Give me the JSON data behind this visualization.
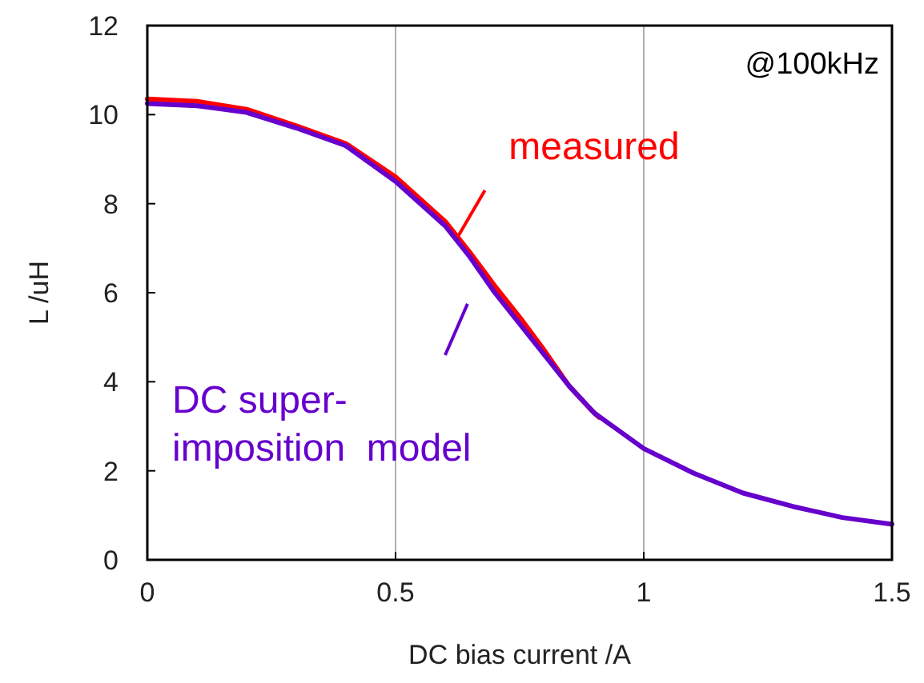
{
  "chart_data": {
    "type": "line",
    "xlabel": "DC bias current /A",
    "ylabel": "L /uH",
    "xlim": [
      0,
      1.5
    ],
    "ylim": [
      0,
      12
    ],
    "xticks": [
      0,
      0.5,
      1,
      1.5
    ],
    "yticks": [
      0,
      2,
      4,
      6,
      8,
      10,
      12
    ],
    "grid": "x",
    "marker": "none",
    "line_style": "solid",
    "annotations": [
      "@100kHz"
    ],
    "series": [
      {
        "name": "measured",
        "color": "#ff0000",
        "x": [
          0,
          0.1,
          0.2,
          0.3,
          0.4,
          0.5,
          0.6,
          0.65,
          0.7,
          0.75,
          0.8,
          0.85,
          0.9,
          0.91
        ],
        "values": [
          10.35,
          10.3,
          10.12,
          9.75,
          9.35,
          8.6,
          7.6,
          6.9,
          6.15,
          5.45,
          4.7,
          3.9,
          3.3,
          3.2
        ]
      },
      {
        "name": "DC super-\nimposition  model",
        "color": "#6600cc",
        "x": [
          0,
          0.1,
          0.2,
          0.3,
          0.4,
          0.5,
          0.6,
          0.65,
          0.7,
          0.75,
          0.8,
          0.85,
          0.9,
          1.0,
          1.1,
          1.2,
          1.3,
          1.4,
          1.5
        ],
        "values": [
          10.25,
          10.2,
          10.05,
          9.7,
          9.3,
          8.5,
          7.5,
          6.8,
          6.0,
          5.3,
          4.6,
          3.9,
          3.3,
          2.5,
          1.95,
          1.5,
          1.2,
          0.95,
          0.8
        ]
      }
    ]
  }
}
